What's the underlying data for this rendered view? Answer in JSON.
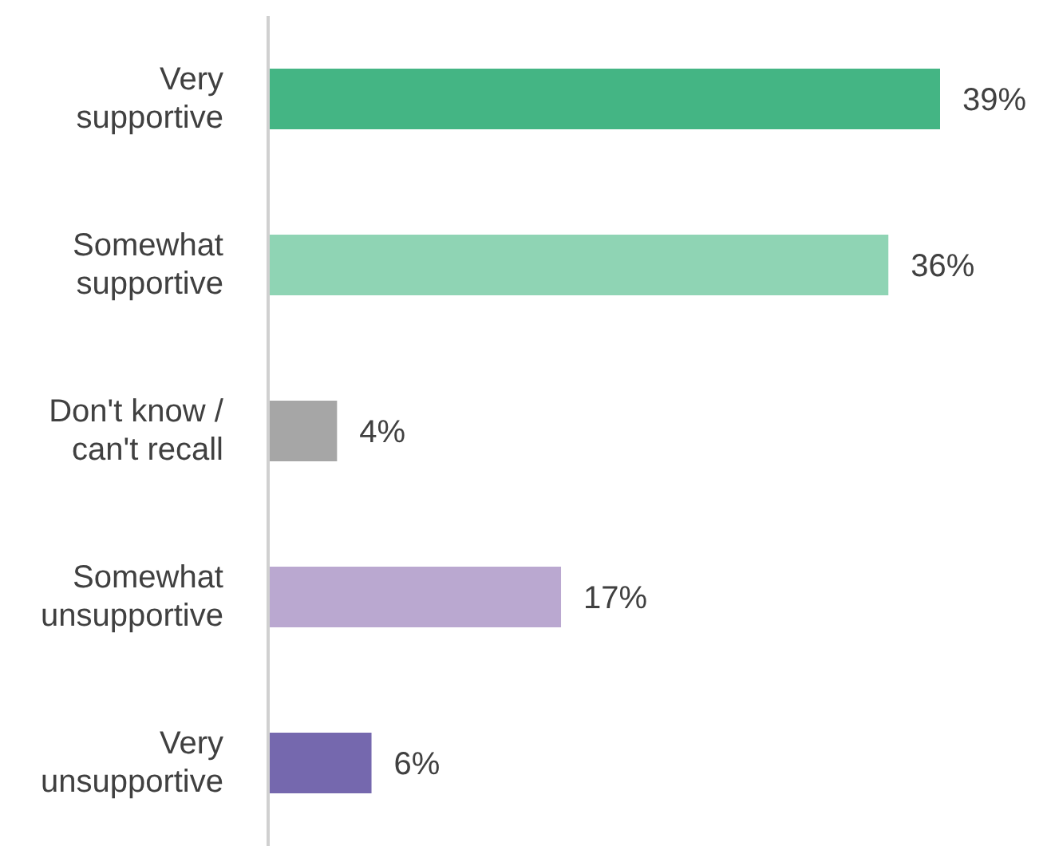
{
  "chart_data": {
    "type": "bar",
    "orientation": "horizontal",
    "categories": [
      "Very supportive",
      "Somewhat supportive",
      "Don't know / can't recall",
      "Somewhat unsupportive",
      "Very unsupportive"
    ],
    "values": [
      39,
      36,
      4,
      17,
      6
    ],
    "colors": [
      "#44b584",
      "#8fd4b4",
      "#a6a6a6",
      "#baa8d0",
      "#7568ae"
    ],
    "value_labels": [
      "39%",
      "36%",
      "4%",
      "17%",
      "6%"
    ],
    "grid": false,
    "legend": false
  }
}
